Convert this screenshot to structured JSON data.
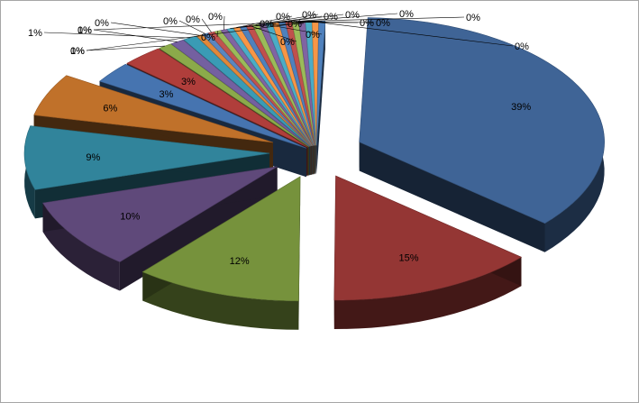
{
  "chart_data": {
    "type": "pie",
    "style": "3d-exploded",
    "legend": "none",
    "slices": [
      {
        "label": "39%",
        "value": 39,
        "color": "#3F6496"
      },
      {
        "label": "15%",
        "value": 15,
        "color": "#943634"
      },
      {
        "label": "12%",
        "value": 12,
        "color": "#76923C"
      },
      {
        "label": "10%",
        "value": 10,
        "color": "#5F497A"
      },
      {
        "label": "9%",
        "value": 9,
        "color": "#31849B"
      },
      {
        "label": "6%",
        "value": 6,
        "color": "#C0712A"
      },
      {
        "label": "3%",
        "value": 3,
        "color": "#4674B0"
      },
      {
        "label": "3%",
        "value": 3,
        "color": "#B03E3B"
      },
      {
        "label": "1%",
        "value": 1,
        "color": "#8BAA4A"
      },
      {
        "label": "1%",
        "value": 1,
        "color": "#7460A0"
      },
      {
        "label": "1%",
        "value": 1,
        "color": "#3A9BB5"
      },
      {
        "label": "0%",
        "value": 0.45,
        "color": "#E0883A"
      },
      {
        "label": "0%",
        "value": 0.45,
        "color": "#5A86C0"
      },
      {
        "label": "0%",
        "value": 0.45,
        "color": "#C05350"
      },
      {
        "label": "0%",
        "value": 0.45,
        "color": "#9BBB59"
      },
      {
        "label": "0%",
        "value": 0.45,
        "color": "#8064A2"
      },
      {
        "label": "0%",
        "value": 0.45,
        "color": "#4BACC6"
      },
      {
        "label": "0%",
        "value": 0.45,
        "color": "#F79646"
      },
      {
        "label": "0%",
        "value": 0.45,
        "color": "#4F81BD"
      },
      {
        "label": "0%",
        "value": 0.45,
        "color": "#C0504D"
      },
      {
        "label": "0%",
        "value": 0.45,
        "color": "#9BBB59"
      },
      {
        "label": "0%",
        "value": 0.45,
        "color": "#8064A2"
      },
      {
        "label": "0%",
        "value": 0.45,
        "color": "#4BACC6"
      },
      {
        "label": "0%",
        "value": 0.45,
        "color": "#F79646"
      },
      {
        "label": "0%",
        "value": 0.45,
        "color": "#4F81BD"
      },
      {
        "label": "0%",
        "value": 0.45,
        "color": "#C0504D"
      },
      {
        "label": "0%",
        "value": 0.45,
        "color": "#9BBB59"
      },
      {
        "label": "0%",
        "value": 0.45,
        "color": "#8064A2"
      },
      {
        "label": "0%",
        "value": 0.45,
        "color": "#4BACC6"
      },
      {
        "label": "0%",
        "value": 0.45,
        "color": "#F79646"
      },
      {
        "label": "0%",
        "value": 0.45,
        "color": "#4F81BD"
      }
    ]
  }
}
